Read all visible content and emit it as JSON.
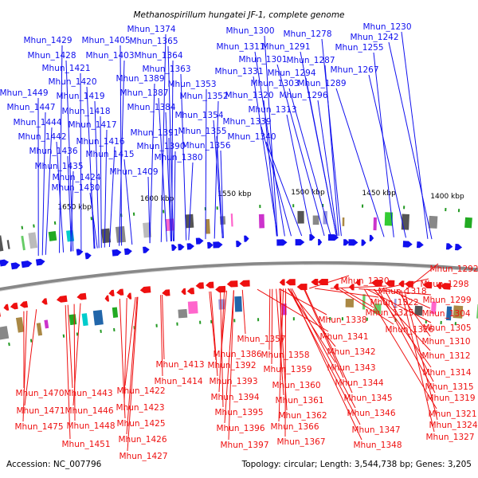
{
  "title": "Methanospirillum hungatei JF-1, complete genome",
  "footer": {
    "accession": "Accession: NC_007796",
    "summary": "Topology: circular; Length: 3,544,738 bp; Genes: 3,205"
  },
  "colors": {
    "forward": "#1010ee",
    "reverse": "#ee1010",
    "backbone": "#888888"
  },
  "kbp_labels": [
    "1400 kbp",
    "1450 kbp",
    "1500 kbp",
    "1550 kbp",
    "1600 kbp",
    "1650 kbp"
  ],
  "top_labels": [
    "Mhun_1374",
    "Mhun_1429",
    "Mhun_1405",
    "Mhun_1365",
    "Mhun_1428",
    "Mhun_1403",
    "Mhun_1364",
    "Mhun_1421",
    "Mhun_1363",
    "Mhun_1420",
    "Mhun_1389",
    "Mhun_1353",
    "Mhun_1449",
    "Mhun_1419",
    "Mhun_1387",
    "Mhun_1352",
    "Mhun_1447",
    "Mhun_1418",
    "Mhun_1384",
    "Mhun_1354",
    "Mhun_1444",
    "Mhun_1417",
    "Mhun_1391",
    "Mhun_1355",
    "Mhun_1442",
    "Mhun_1416",
    "Mhun_1390",
    "Mhun_1356",
    "Mhun_1436",
    "Mhun_1415",
    "Mhun_1380",
    "Mhun_1435",
    "Mhun_1409",
    "Mhun_1424",
    "Mhun_1430",
    "Mhun_1300",
    "Mhun_1278",
    "Mhun_1230",
    "Mhun_1311",
    "Mhun_1291",
    "Mhun_1242",
    "Mhun_1301",
    "Mhun_1287",
    "Mhun_1255",
    "Mhun_1331",
    "Mhun_1294",
    "Mhun_1267",
    "Mhun_1303",
    "Mhun_1289",
    "Mhun_1320",
    "Mhun_1296",
    "Mhun_1313",
    "Mhun_1339",
    "Mhun_1340"
  ],
  "bottom_labels": [
    "Mhun_1292",
    "Mhun_1330",
    "Mhun_1298",
    "Mhun_1318",
    "Mhun_1322",
    "Mhun_1299",
    "Mhun_1325",
    "Mhun_1304",
    "Mhun_1338",
    "Mhun_1326",
    "Mhun_1305",
    "Mhun_1341",
    "Mhun_1310",
    "Mhun_1357",
    "Mhun_1342",
    "Mhun_1312",
    "Mhun_1386",
    "Mhun_1358",
    "Mhun_1413",
    "Mhun_1392",
    "Mhun_1343",
    "Mhun_1314",
    "Mhun_1359",
    "Mhun_1414",
    "Mhun_1393",
    "Mhun_1344",
    "Mhun_1315",
    "Mhun_1360",
    "Mhun_1470",
    "Mhun_1443",
    "Mhun_1422",
    "Mhun_1394",
    "Mhun_1345",
    "Mhun_1319",
    "Mhun_1361",
    "Mhun_1471",
    "Mhun_1446",
    "Mhun_1423",
    "Mhun_1395",
    "Mhun_1362",
    "Mhun_1346",
    "Mhun_1321",
    "Mhun_1475",
    "Mhun_1448",
    "Mhun_1425",
    "Mhun_1396",
    "Mhun_1366",
    "Mhun_1347",
    "Mhun_1324",
    "Mhun_1451",
    "Mhun_1426",
    "Mhun_1397",
    "Mhun_1367",
    "Mhun_1348",
    "Mhun_1327",
    "Mhun_1427"
  ]
}
